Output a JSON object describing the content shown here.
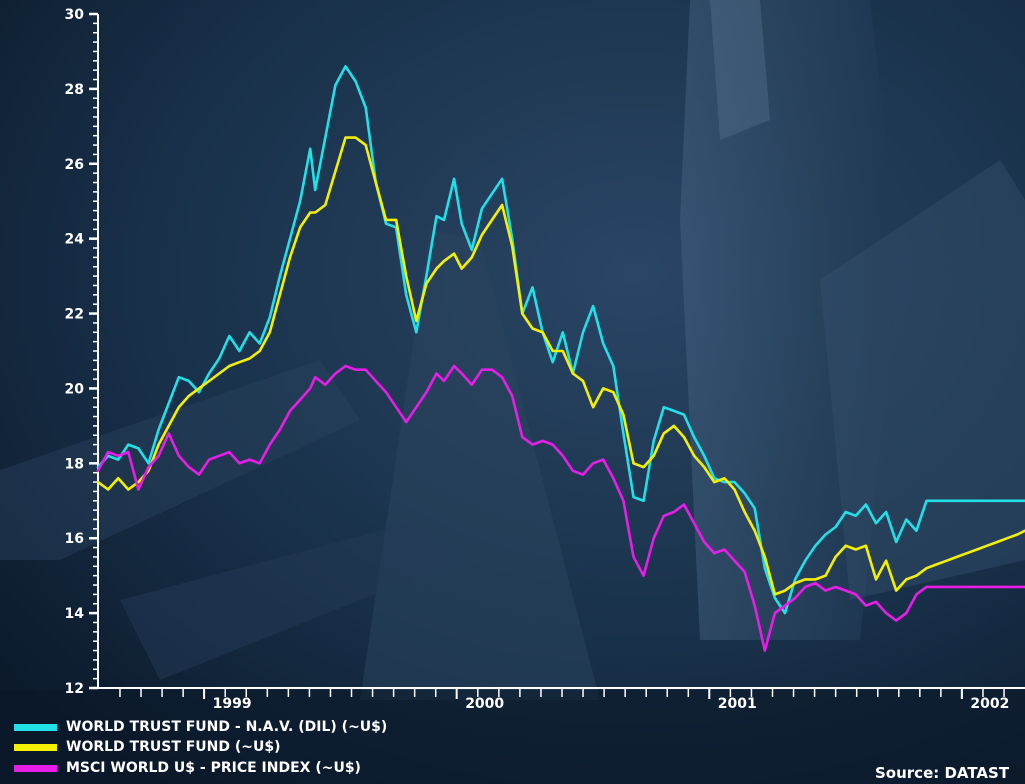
{
  "chart_data": {
    "type": "line",
    "title": "",
    "xlabel": "",
    "ylabel": "",
    "ylim": [
      12,
      30
    ],
    "yticks": [
      12,
      14,
      16,
      18,
      20,
      22,
      24,
      26,
      28,
      30
    ],
    "xlim": [
      1998.58,
      2002.25
    ],
    "xticks": [
      {
        "label": "1999",
        "value": 1999.0
      },
      {
        "label": "2000",
        "value": 2000.0
      },
      {
        "label": "2001",
        "value": 2001.0
      },
      {
        "label": "2002",
        "value": 2002.0
      }
    ],
    "grid": false,
    "legend_position": "bottom-left",
    "series": [
      {
        "name": "WORLD TRUST FUND - N.A.V. (DIL) (~U$)",
        "color": "#22e0e8",
        "x": [
          1998.58,
          1998.62,
          1998.66,
          1998.7,
          1998.74,
          1998.78,
          1998.82,
          1998.86,
          1998.9,
          1998.94,
          1998.98,
          1999.02,
          1999.06,
          1999.1,
          1999.14,
          1999.18,
          1999.22,
          1999.26,
          1999.3,
          1999.34,
          1999.38,
          1999.42,
          1999.44,
          1999.48,
          1999.52,
          1999.56,
          1999.6,
          1999.64,
          1999.68,
          1999.72,
          1999.76,
          1999.8,
          1999.84,
          1999.88,
          1999.92,
          1999.95,
          1999.99,
          2000.02,
          2000.06,
          2000.1,
          2000.14,
          2000.18,
          2000.22,
          2000.26,
          2000.3,
          2000.34,
          2000.38,
          2000.42,
          2000.46,
          2000.5,
          2000.54,
          2000.58,
          2000.62,
          2000.66,
          2000.7,
          2000.74,
          2000.78,
          2000.82,
          2000.86,
          2000.9,
          2000.94,
          2000.98,
          2001.02,
          2001.06,
          2001.1,
          2001.14,
          2001.18,
          2001.22,
          2001.26,
          2001.3,
          2001.34,
          2001.38,
          2001.42,
          2001.46,
          2001.5,
          2001.54,
          2001.58,
          2001.62,
          2001.66,
          2001.7,
          2001.74,
          2001.78,
          2001.82,
          2001.86,
          2001.9,
          2001.94,
          2001.98,
          2002.02,
          2002.06,
          2002.1,
          2002.14,
          2002.18,
          2002.22,
          2002.25
        ],
        "y": [
          17.9,
          18.2,
          18.1,
          18.5,
          18.4,
          18.0,
          18.9,
          19.6,
          20.3,
          20.2,
          19.9,
          20.4,
          20.8,
          21.4,
          21.0,
          21.5,
          21.2,
          21.9,
          23.0,
          24.0,
          25.0,
          26.4,
          25.3,
          26.7,
          28.1,
          28.6,
          28.2,
          27.5,
          25.5,
          24.4,
          24.3,
          22.5,
          21.5,
          23.0,
          24.6,
          24.5,
          25.6,
          24.4,
          23.7,
          24.8,
          25.2,
          25.6,
          24.0,
          22.0,
          22.7,
          21.5,
          20.7,
          21.5,
          20.4,
          21.5,
          22.2,
          21.2,
          20.6,
          18.8,
          17.1,
          17.0,
          18.6,
          19.5,
          19.4,
          19.3,
          18.7,
          18.2,
          17.6,
          17.5,
          17.5,
          17.2,
          16.8,
          15.2,
          14.4,
          14.0,
          14.9,
          15.4,
          15.8,
          16.1,
          16.3,
          16.7,
          16.6,
          16.9,
          16.4,
          16.7,
          15.9,
          16.5,
          16.2,
          17.0,
          17.0,
          17.0,
          17.0,
          17.0,
          17.0,
          17.0,
          17.0,
          17.0,
          17.0,
          17.0
        ]
      },
      {
        "name": "WORLD TRUST FUND (~U$)",
        "color": "#f4f000",
        "x": [
          1998.58,
          1998.62,
          1998.66,
          1998.7,
          1998.74,
          1998.78,
          1998.82,
          1998.86,
          1998.9,
          1998.94,
          1998.98,
          1999.02,
          1999.06,
          1999.1,
          1999.14,
          1999.18,
          1999.22,
          1999.26,
          1999.3,
          1999.34,
          1999.38,
          1999.42,
          1999.44,
          1999.48,
          1999.52,
          1999.56,
          1999.6,
          1999.64,
          1999.68,
          1999.72,
          1999.76,
          1999.8,
          1999.84,
          1999.88,
          1999.92,
          1999.95,
          1999.99,
          2000.02,
          2000.06,
          2000.1,
          2000.14,
          2000.18,
          2000.22,
          2000.26,
          2000.3,
          2000.34,
          2000.38,
          2000.42,
          2000.46,
          2000.5,
          2000.54,
          2000.58,
          2000.62,
          2000.66,
          2000.7,
          2000.74,
          2000.78,
          2000.82,
          2000.86,
          2000.9,
          2000.94,
          2000.98,
          2001.02,
          2001.06,
          2001.1,
          2001.14,
          2001.18,
          2001.22,
          2001.26,
          2001.3,
          2001.34,
          2001.38,
          2001.42,
          2001.46,
          2001.5,
          2001.54,
          2001.58,
          2001.62,
          2001.66,
          2001.7,
          2001.74,
          2001.78,
          2001.82,
          2001.86,
          2001.9,
          2001.94,
          2001.98,
          2002.02,
          2002.06,
          2002.1,
          2002.14,
          2002.18,
          2002.22,
          2002.25
        ],
        "y": [
          17.5,
          17.3,
          17.6,
          17.3,
          17.5,
          17.8,
          18.5,
          19.0,
          19.5,
          19.8,
          20.0,
          20.2,
          20.4,
          20.6,
          20.7,
          20.8,
          21.0,
          21.5,
          22.5,
          23.5,
          24.3,
          24.7,
          24.7,
          24.9,
          25.8,
          26.7,
          26.7,
          26.5,
          25.5,
          24.5,
          24.5,
          23.0,
          21.8,
          22.8,
          23.2,
          23.4,
          23.6,
          23.2,
          23.5,
          24.1,
          24.5,
          24.9,
          23.8,
          22.0,
          21.6,
          21.5,
          21.0,
          21.0,
          20.4,
          20.2,
          19.5,
          20.0,
          19.9,
          19.3,
          18.0,
          17.9,
          18.2,
          18.8,
          19.0,
          18.7,
          18.2,
          17.9,
          17.5,
          17.6,
          17.3,
          16.7,
          16.2,
          15.5,
          14.5,
          14.6,
          14.8,
          14.9,
          14.9,
          15.0,
          15.5,
          15.8,
          15.7,
          15.8,
          14.9,
          15.4,
          14.6,
          14.9,
          15.0,
          15.2,
          15.3,
          15.4,
          15.5,
          15.6,
          15.7,
          15.8,
          15.9,
          16.0,
          16.1,
          16.2
        ]
      },
      {
        "name": "MSCI WORLD U$ - PRICE INDEX (~U$)",
        "color": "#e81ee8",
        "x": [
          1998.58,
          1998.62,
          1998.66,
          1998.7,
          1998.74,
          1998.78,
          1998.82,
          1998.86,
          1998.9,
          1998.94,
          1998.98,
          1999.02,
          1999.06,
          1999.1,
          1999.14,
          1999.18,
          1999.22,
          1999.26,
          1999.3,
          1999.34,
          1999.38,
          1999.42,
          1999.44,
          1999.48,
          1999.52,
          1999.56,
          1999.6,
          1999.64,
          1999.68,
          1999.72,
          1999.76,
          1999.8,
          1999.84,
          1999.88,
          1999.92,
          1999.95,
          1999.99,
          2000.02,
          2000.06,
          2000.1,
          2000.14,
          2000.18,
          2000.22,
          2000.26,
          2000.3,
          2000.34,
          2000.38,
          2000.42,
          2000.46,
          2000.5,
          2000.54,
          2000.58,
          2000.62,
          2000.66,
          2000.7,
          2000.74,
          2000.78,
          2000.82,
          2000.86,
          2000.9,
          2000.94,
          2000.98,
          2001.02,
          2001.06,
          2001.1,
          2001.14,
          2001.18,
          2001.22,
          2001.26,
          2001.3,
          2001.34,
          2001.38,
          2001.42,
          2001.46,
          2001.5,
          2001.54,
          2001.58,
          2001.62,
          2001.66,
          2001.7,
          2001.74,
          2001.78,
          2001.82,
          2001.86,
          2001.9,
          2001.94,
          2001.98,
          2002.02,
          2002.06,
          2002.1,
          2002.14,
          2002.18,
          2002.22,
          2002.25
        ],
        "y": [
          17.8,
          18.3,
          18.2,
          18.3,
          17.3,
          17.9,
          18.2,
          18.8,
          18.2,
          17.9,
          17.7,
          18.1,
          18.2,
          18.3,
          18.0,
          18.1,
          18.0,
          18.5,
          18.9,
          19.4,
          19.7,
          20.0,
          20.3,
          20.1,
          20.4,
          20.6,
          20.5,
          20.5,
          20.2,
          19.9,
          19.5,
          19.1,
          19.5,
          19.9,
          20.4,
          20.2,
          20.6,
          20.4,
          20.1,
          20.5,
          20.5,
          20.3,
          19.8,
          18.7,
          18.5,
          18.6,
          18.5,
          18.2,
          17.8,
          17.7,
          18.0,
          18.1,
          17.6,
          17.0,
          15.5,
          15.0,
          16.0,
          16.6,
          16.7,
          16.9,
          16.4,
          15.9,
          15.6,
          15.7,
          15.4,
          15.1,
          14.2,
          13.0,
          14.0,
          14.2,
          14.4,
          14.7,
          14.8,
          14.6,
          14.7,
          14.6,
          14.5,
          14.2,
          14.3,
          14.0,
          13.8,
          14.0,
          14.5,
          14.7,
          14.7,
          14.7,
          14.7,
          14.7,
          14.7,
          14.7,
          14.7,
          14.7,
          14.7,
          14.7
        ]
      }
    ]
  },
  "source": "Source: DATAST"
}
